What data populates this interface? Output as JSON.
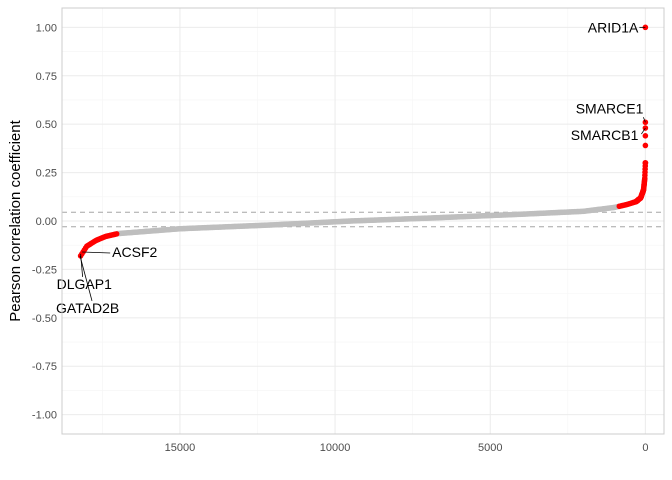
{
  "chart_data": {
    "type": "scatter",
    "ylabel": "Pearson correlation coefficient",
    "xlabel": "",
    "x_reversed": true,
    "xlim": [
      18800,
      -600
    ],
    "ylim": [
      -1.1,
      1.1
    ],
    "x_ticks": [
      15000,
      10000,
      5000,
      0
    ],
    "y_ticks": [
      -1.0,
      -0.75,
      -0.5,
      -0.25,
      0.0,
      0.25,
      0.5,
      0.75,
      1.0
    ],
    "x_tick_labels": [
      "15000",
      "10000",
      "5000",
      "0"
    ],
    "y_tick_labels": [
      "-1.00",
      "-0.75",
      "-0.50",
      "-0.25",
      "0.00",
      "0.25",
      "0.50",
      "0.75",
      "1.00"
    ],
    "grid": true,
    "thresholds": [
      0.045,
      -0.03
    ],
    "colors": {
      "significant": "#ff0000",
      "background": "#bebebe",
      "threshold_line": "#a6a6a6",
      "grid_major": "#ebebeb",
      "grid_minor": "#f5f5f5"
    },
    "curve_anchors": {
      "x": [
        18200,
        18000,
        17700,
        17400,
        17000,
        15000,
        12000,
        9500,
        7000,
        4000,
        2000,
        1000,
        600,
        300,
        150,
        60,
        20,
        0
      ],
      "y": [
        -0.18,
        -0.13,
        -0.1,
        -0.08,
        -0.065,
        -0.04,
        -0.02,
        0.0,
        0.015,
        0.035,
        0.05,
        0.07,
        0.085,
        0.1,
        0.12,
        0.16,
        0.22,
        0.3
      ]
    },
    "outliers": [
      {
        "x": 0,
        "y": 1.0
      },
      {
        "x": 0,
        "y": 0.51
      },
      {
        "x": 0,
        "y": 0.48
      },
      {
        "x": 0,
        "y": 0.44
      },
      {
        "x": 0,
        "y": 0.39
      },
      {
        "x": 0,
        "y": 0.3
      }
    ],
    "annotations": [
      {
        "label": "ARID1A",
        "x": 0,
        "y": 1.0
      },
      {
        "label": "SMARCE1",
        "x": 0,
        "y": 0.51
      },
      {
        "label": "SMARCB1",
        "x": 0,
        "y": 0.48
      },
      {
        "label": "ACSF2",
        "x": 18150,
        "y": -0.16
      },
      {
        "label": "DLGAP1",
        "x": 18200,
        "y": -0.17
      },
      {
        "label": "GATAD2B",
        "x": 18220,
        "y": -0.18
      }
    ]
  }
}
